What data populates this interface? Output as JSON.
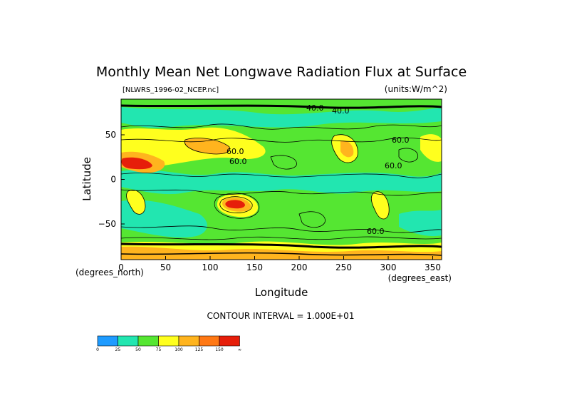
{
  "chart_data": {
    "type": "heatmap",
    "title": "Monthly Mean Net Longwave Radiation Flux at Surface",
    "file_label": "[NLWRS_1996-02_NCEP.nc]",
    "units_label": "(units:W/m^2)",
    "xlabel": "Longitude",
    "ylabel": "Latitude",
    "x_unit_label": "(degrees_east)",
    "y_unit_label": "(degrees_north)",
    "xlim": [
      0,
      360
    ],
    "ylim": [
      -90,
      90
    ],
    "x_ticks": [
      0,
      50,
      100,
      150,
      200,
      250,
      300,
      350
    ],
    "y_ticks": [
      50,
      0,
      -50
    ],
    "y_tick_labels": [
      "50",
      "0",
      "−50"
    ],
    "contour_interval_text": "CONTOUR INTERVAL = 1.000E+01",
    "contour_labels": [
      "40.0",
      "40.0",
      "60.0",
      "60.0",
      "60.0",
      "60.0",
      "60.0"
    ],
    "colorbar": {
      "bounds": [
        "0",
        "25",
        "50",
        "75",
        "100",
        "125",
        "150",
        "∞"
      ],
      "colors": [
        "#1e9bff",
        "#22e6b0",
        "#55e632",
        "#ffff1e",
        "#ffb41e",
        "#ff7814",
        "#e61e0a"
      ]
    },
    "colors": {
      "background_field": "#55e632",
      "low": "#22e6b0",
      "high": "#ffff1e",
      "higher": "#ffb41e",
      "highest": "#e61e0a"
    }
  }
}
